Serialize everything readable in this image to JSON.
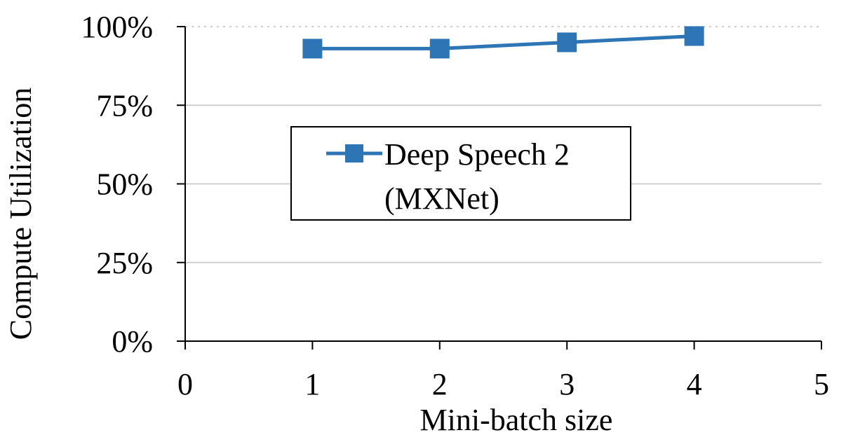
{
  "chart_data": {
    "type": "line",
    "xlabel": "Mini-batch size",
    "ylabel": "Compute Utilization",
    "xlim": [
      0,
      5
    ],
    "ylim": [
      0,
      100
    ],
    "x_ticks": [
      "0",
      "1",
      "2",
      "3",
      "4",
      "5"
    ],
    "y_ticks": [
      "0%",
      "25%",
      "50%",
      "75%",
      "100%"
    ],
    "y_tick_values": [
      0,
      25,
      50,
      75,
      100
    ],
    "x_tick_values": [
      0,
      1,
      2,
      3,
      4,
      5
    ],
    "grid": true,
    "legend_position": "center-left",
    "series": [
      {
        "name_lines": [
          "Deep Speech 2",
          "(MXNet)"
        ],
        "color": "#2e75b6",
        "x": [
          1,
          2,
          3,
          4
        ],
        "y": [
          93,
          93,
          95,
          97
        ]
      }
    ]
  }
}
